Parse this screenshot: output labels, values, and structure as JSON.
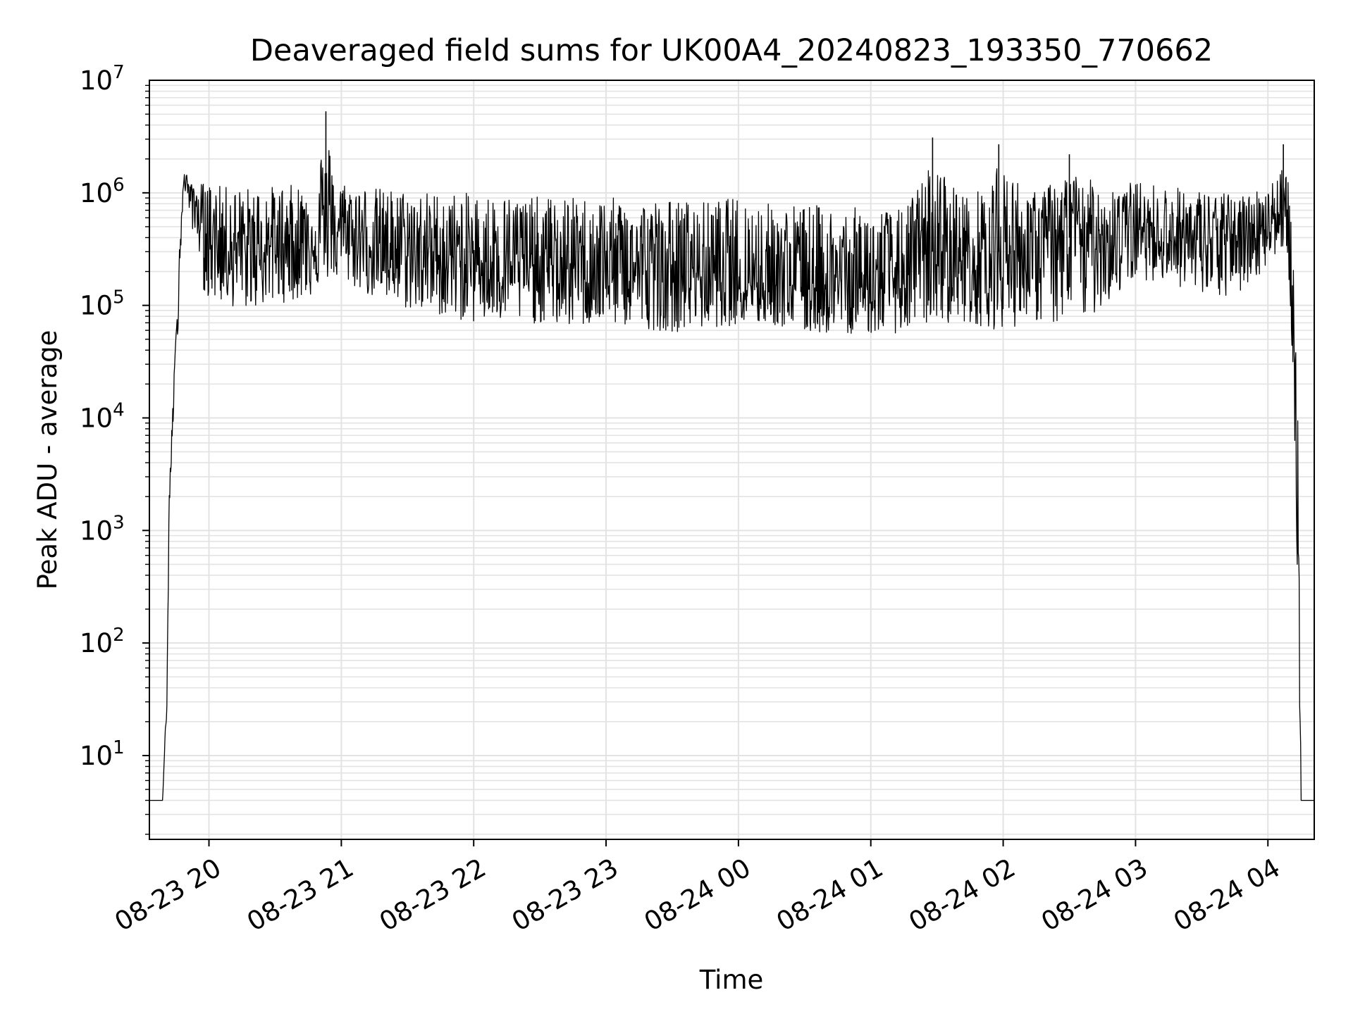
{
  "chart_data": {
    "type": "line",
    "title": "Deaveraged field sums for UK00A4_20240823_193350_770662",
    "xlabel": "Time",
    "ylabel": "Peak ADU - average",
    "yscale": "log",
    "ylim": [
      1.8,
      10000000
    ],
    "xlim": [
      "2024-08-23 19:33",
      "2024-08-24 04:21"
    ],
    "grid": true,
    "x_tick_labels": [
      "08-23 20",
      "08-23 21",
      "08-23 22",
      "08-23 23",
      "08-24 00",
      "08-24 01",
      "08-24 02",
      "08-24 03",
      "08-24 04"
    ],
    "y_tick_labels": [
      {
        "base": "10",
        "exp": "1"
      },
      {
        "base": "10",
        "exp": "2"
      },
      {
        "base": "10",
        "exp": "3"
      },
      {
        "base": "10",
        "exp": "4"
      },
      {
        "base": "10",
        "exp": "5"
      },
      {
        "base": "10",
        "exp": "6"
      },
      {
        "base": "10",
        "exp": "7"
      }
    ],
    "line_color": "#000000",
    "grid_color": "#e3e3e3",
    "series": [
      {
        "x": [
          "2024-08-23 19:33",
          "2024-08-23 19:39",
          "2024-08-23 19:41",
          "2024-08-23 19:42",
          "2024-08-23 19:44",
          "2024-08-23 19:46",
          "2024-08-23 19:47",
          "2024-08-23 19:49",
          "2024-08-23 19:51",
          "2024-08-23 19:53",
          "2024-08-23 19:56",
          "2024-08-23 19:58",
          "2024-08-23 20:05",
          "2024-08-23 20:15",
          "2024-08-23 20:30",
          "2024-08-23 20:45",
          "2024-08-23 20:53",
          "2024-08-23 21:00",
          "2024-08-23 21:15",
          "2024-08-23 21:30",
          "2024-08-23 21:45",
          "2024-08-23 22:00",
          "2024-08-23 22:15",
          "2024-08-23 22:30",
          "2024-08-23 22:45",
          "2024-08-23 23:00",
          "2024-08-23 23:15",
          "2024-08-23 23:30",
          "2024-08-23 23:45",
          "2024-08-24 00:00",
          "2024-08-24 00:15",
          "2024-08-24 00:30",
          "2024-08-24 00:45",
          "2024-08-24 01:00",
          "2024-08-24 01:15",
          "2024-08-24 01:28",
          "2024-08-24 01:45",
          "2024-08-24 01:58",
          "2024-08-24 02:15",
          "2024-08-24 02:30",
          "2024-08-24 02:45",
          "2024-08-24 03:00",
          "2024-08-24 03:15",
          "2024-08-24 03:30",
          "2024-08-24 03:45",
          "2024-08-24 04:00",
          "2024-08-24 04:07",
          "2024-08-24 04:10",
          "2024-08-24 04:12",
          "2024-08-24 04:14",
          "2024-08-24 04:15",
          "2024-08-24 04:21"
        ],
        "y": [
          4,
          4,
          40,
          1500,
          20000,
          100000,
          500000,
          1500000,
          1100000,
          900000,
          600000,
          500000,
          400000,
          300000,
          350000,
          400000,
          500000,
          450000,
          350000,
          300000,
          280000,
          250000,
          250000,
          230000,
          220000,
          220000,
          210000,
          210000,
          200000,
          180000,
          170000,
          160000,
          160000,
          150000,
          180000,
          300000,
          250000,
          300000,
          350000,
          400000,
          450000,
          500000,
          400000,
          350000,
          400000,
          600000,
          700000,
          300000,
          10000,
          100,
          4,
          4
        ],
        "y_min": [
          4,
          4,
          25,
          1500,
          10000,
          60000,
          250000,
          1000000,
          600000,
          400000,
          250000,
          100000,
          90000,
          80000,
          90000,
          100000,
          150000,
          150000,
          100000,
          80000,
          70000,
          60000,
          60000,
          60000,
          55000,
          60000,
          55000,
          50000,
          55000,
          60000,
          60000,
          50000,
          50000,
          50000,
          50000,
          60000,
          60000,
          50000,
          60000,
          50000,
          80000,
          150000,
          150000,
          100000,
          100000,
          200000,
          300000,
          100000,
          10000,
          100,
          4,
          4
        ],
        "y_max": [
          4.6,
          4.6,
          50,
          3000,
          20000,
          150000,
          600000,
          1700000,
          1300000,
          1200000,
          1500000,
          1550000,
          1500000,
          1550000,
          1550000,
          1600000,
          5300000,
          1700000,
          1500000,
          1450000,
          1400000,
          1400000,
          1350000,
          1300000,
          1300000,
          1300000,
          1250000,
          1250000,
          1200000,
          1400000,
          1200000,
          1200000,
          1100000,
          1100000,
          1000000,
          3100000,
          1200000,
          2700000,
          1300000,
          2200000,
          1500000,
          1600000,
          1500000,
          1400000,
          1200000,
          1300000,
          2700000,
          1600000,
          300000,
          10000,
          4.6,
          4.6
        ]
      }
    ]
  }
}
